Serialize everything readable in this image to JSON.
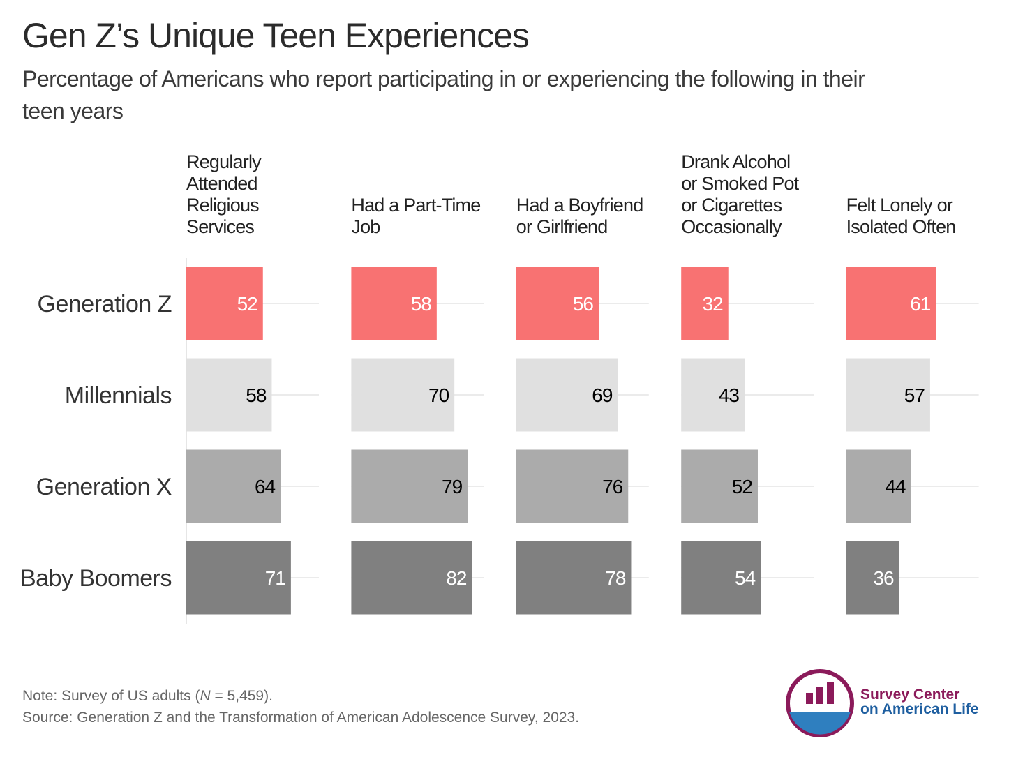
{
  "title": "Gen Z’s Unique Teen Experiences",
  "subtitle": [
    "Percentage of Americans who report participating in or experiencing the following in their",
    "teen years"
  ],
  "note": [
    "Note: Survey of US adults (",
    "N",
    " = 5,459)."
  ],
  "source": "Source: Generation Z and the Transformation of American Adolescence Survey, 2023.",
  "logo": [
    "Survey Center",
    "on American Life"
  ],
  "chart_data": {
    "type": "bar",
    "categories": [
      "Generation Z",
      "Millennials",
      "Generation X",
      "Baby Boomers"
    ],
    "colors": [
      "#f87272",
      "#e0e0e0",
      "#ababab",
      "#808080"
    ],
    "label_colors": [
      "#ffffff",
      "#000000",
      "#000000",
      "#ffffff"
    ],
    "xlim": [
      0,
      90
    ],
    "series": [
      {
        "name": [
          "Regularly",
          "Attended",
          "Religious",
          "Services"
        ],
        "values": [
          52,
          58,
          64,
          71
        ]
      },
      {
        "name": [
          "Had a Part-Time",
          "Job"
        ],
        "values": [
          58,
          70,
          79,
          82
        ]
      },
      {
        "name": [
          "Had a Boyfriend",
          "or Girlfriend"
        ],
        "values": [
          56,
          69,
          76,
          78
        ]
      },
      {
        "name": [
          "Drank Alcohol",
          "or Smoked Pot",
          "or Cigarettes",
          "Occasionally"
        ],
        "values": [
          32,
          43,
          52,
          54
        ]
      },
      {
        "name": [
          "Felt Lonely or",
          "Isolated Often"
        ],
        "values": [
          61,
          57,
          44,
          36
        ]
      }
    ]
  }
}
